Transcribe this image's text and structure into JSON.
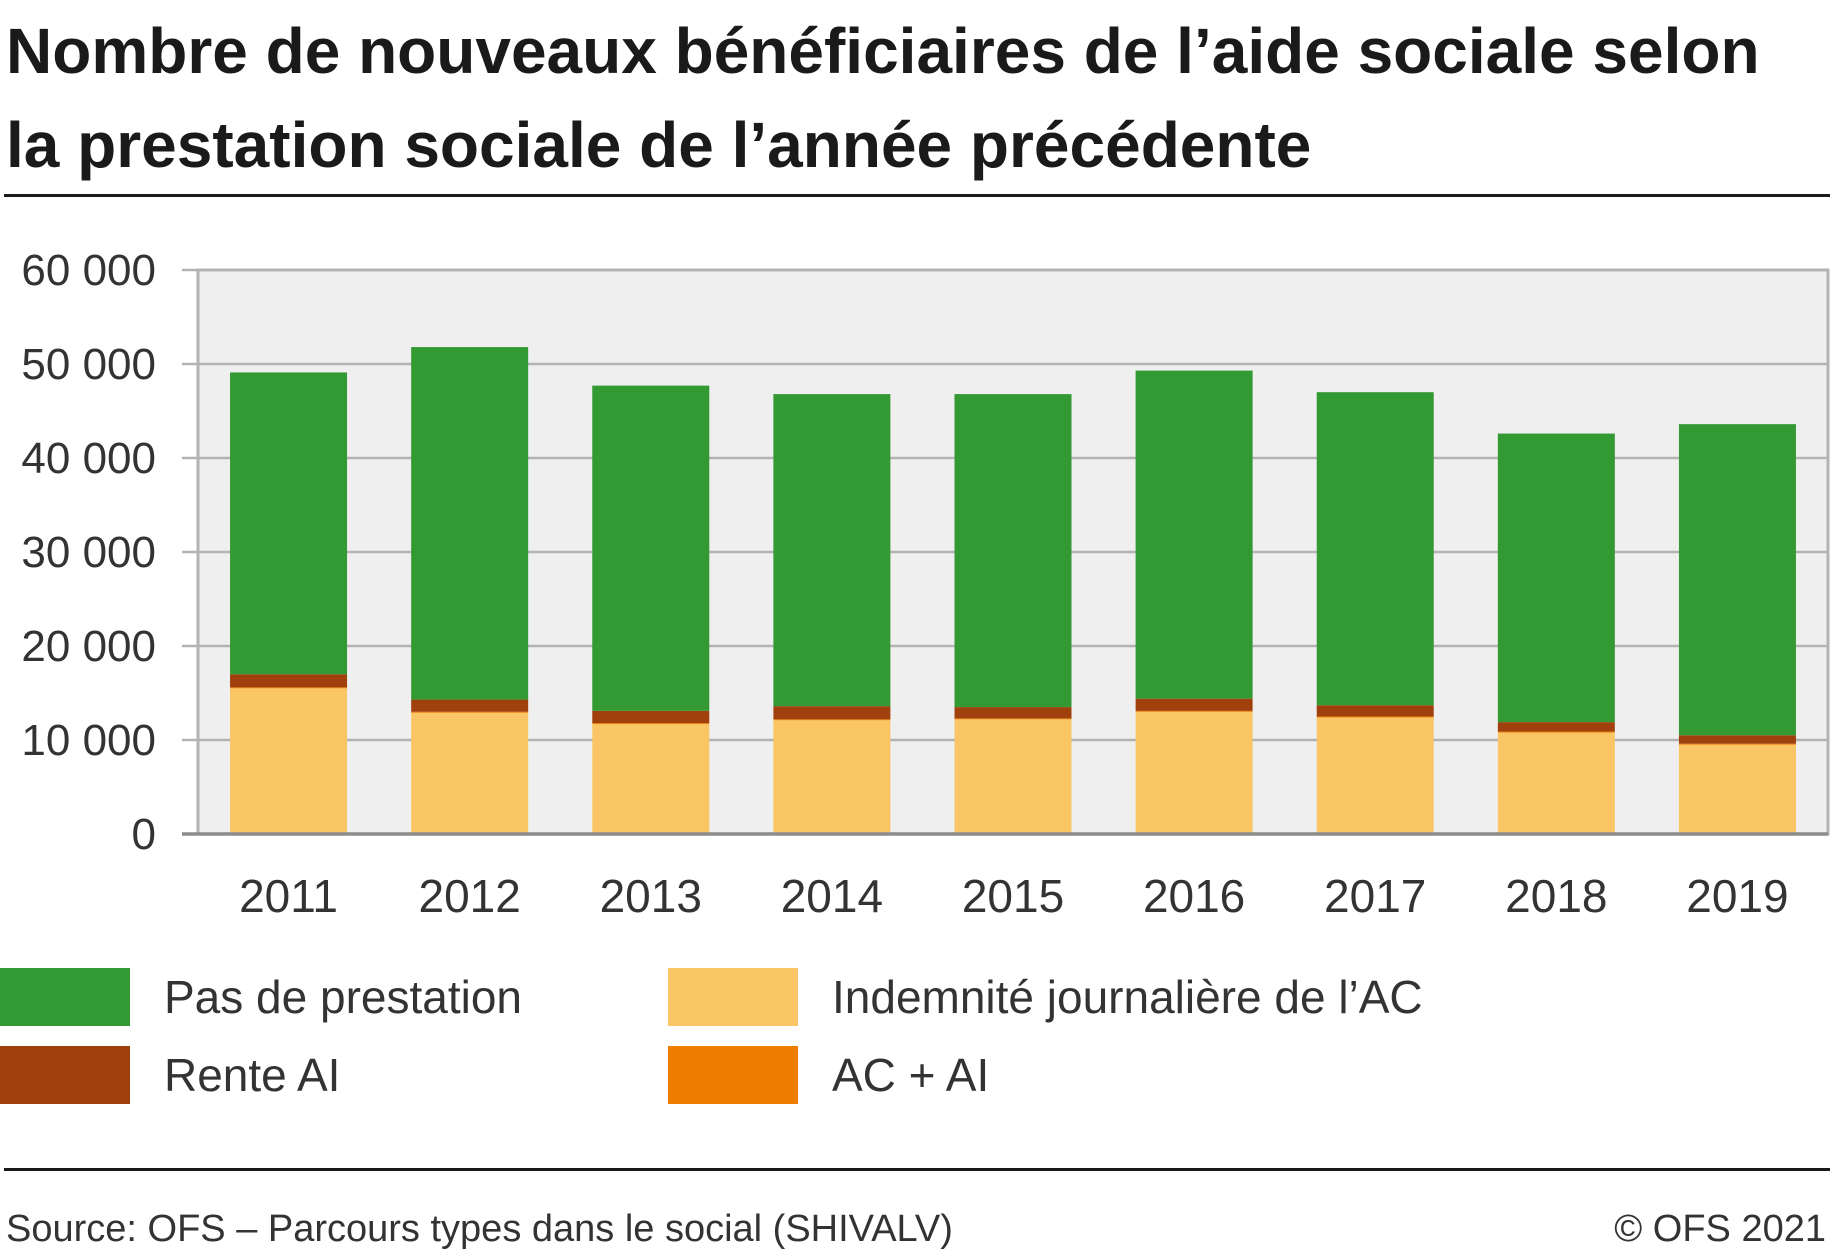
{
  "title": "Nombre de nouveaux bénéficiaires de l’aide sociale selon la prestation sociale de l’année précédente",
  "source": "Source: OFS – Parcours types dans le social (SHIVALV)",
  "copyright": "© OFS 2021",
  "colors": {
    "pas_de_prestation": "#339933",
    "rente_ai": "#a0410d",
    "indemnite_ac": "#fac565",
    "ac_ai": "#ef7d00",
    "plot_bg": "#efefef",
    "grid": "#b3b3b3"
  },
  "chart_data": {
    "type": "bar",
    "stacked": true,
    "title": "Nombre de nouveaux bénéficiaires de l’aide sociale selon la prestation sociale de l’année précédente",
    "xlabel": "",
    "ylabel": "",
    "ylim": [
      0,
      60000
    ],
    "y_ticks": [
      0,
      10000,
      20000,
      30000,
      40000,
      50000,
      60000
    ],
    "y_tick_labels": [
      "0",
      "10 000",
      "20 000",
      "30 000",
      "40 000",
      "50 000",
      "60 000"
    ],
    "grid": true,
    "legend_position": "bottom",
    "categories": [
      "2011",
      "2012",
      "2013",
      "2014",
      "2015",
      "2016",
      "2017",
      "2018",
      "2019"
    ],
    "series": [
      {
        "name": "Indemnité journalière de l’AC",
        "color_key": "indemnite_ac",
        "values": [
          15500,
          12900,
          11700,
          12100,
          12200,
          13000,
          12400,
          10800,
          9500
        ]
      },
      {
        "name": "AC + AI",
        "color_key": "ac_ai",
        "values": [
          100,
          100,
          100,
          100,
          100,
          100,
          100,
          100,
          100
        ]
      },
      {
        "name": "Rente AI",
        "color_key": "rente_ai",
        "values": [
          1400,
          1300,
          1300,
          1400,
          1200,
          1300,
          1200,
          1000,
          900
        ]
      },
      {
        "name": "Pas de prestation",
        "color_key": "pas_de_prestation",
        "values": [
          32100,
          37500,
          34600,
          33200,
          33300,
          34900,
          33300,
          30700,
          33100
        ]
      }
    ]
  },
  "legend": [
    {
      "label": "Pas de prestation",
      "color_key": "pas_de_prestation"
    },
    {
      "label": "Indemnité journalière de l’AC",
      "color_key": "indemnite_ac"
    },
    {
      "label": "Rente AI",
      "color_key": "rente_ai"
    },
    {
      "label": "AC + AI",
      "color_key": "ac_ai"
    }
  ]
}
